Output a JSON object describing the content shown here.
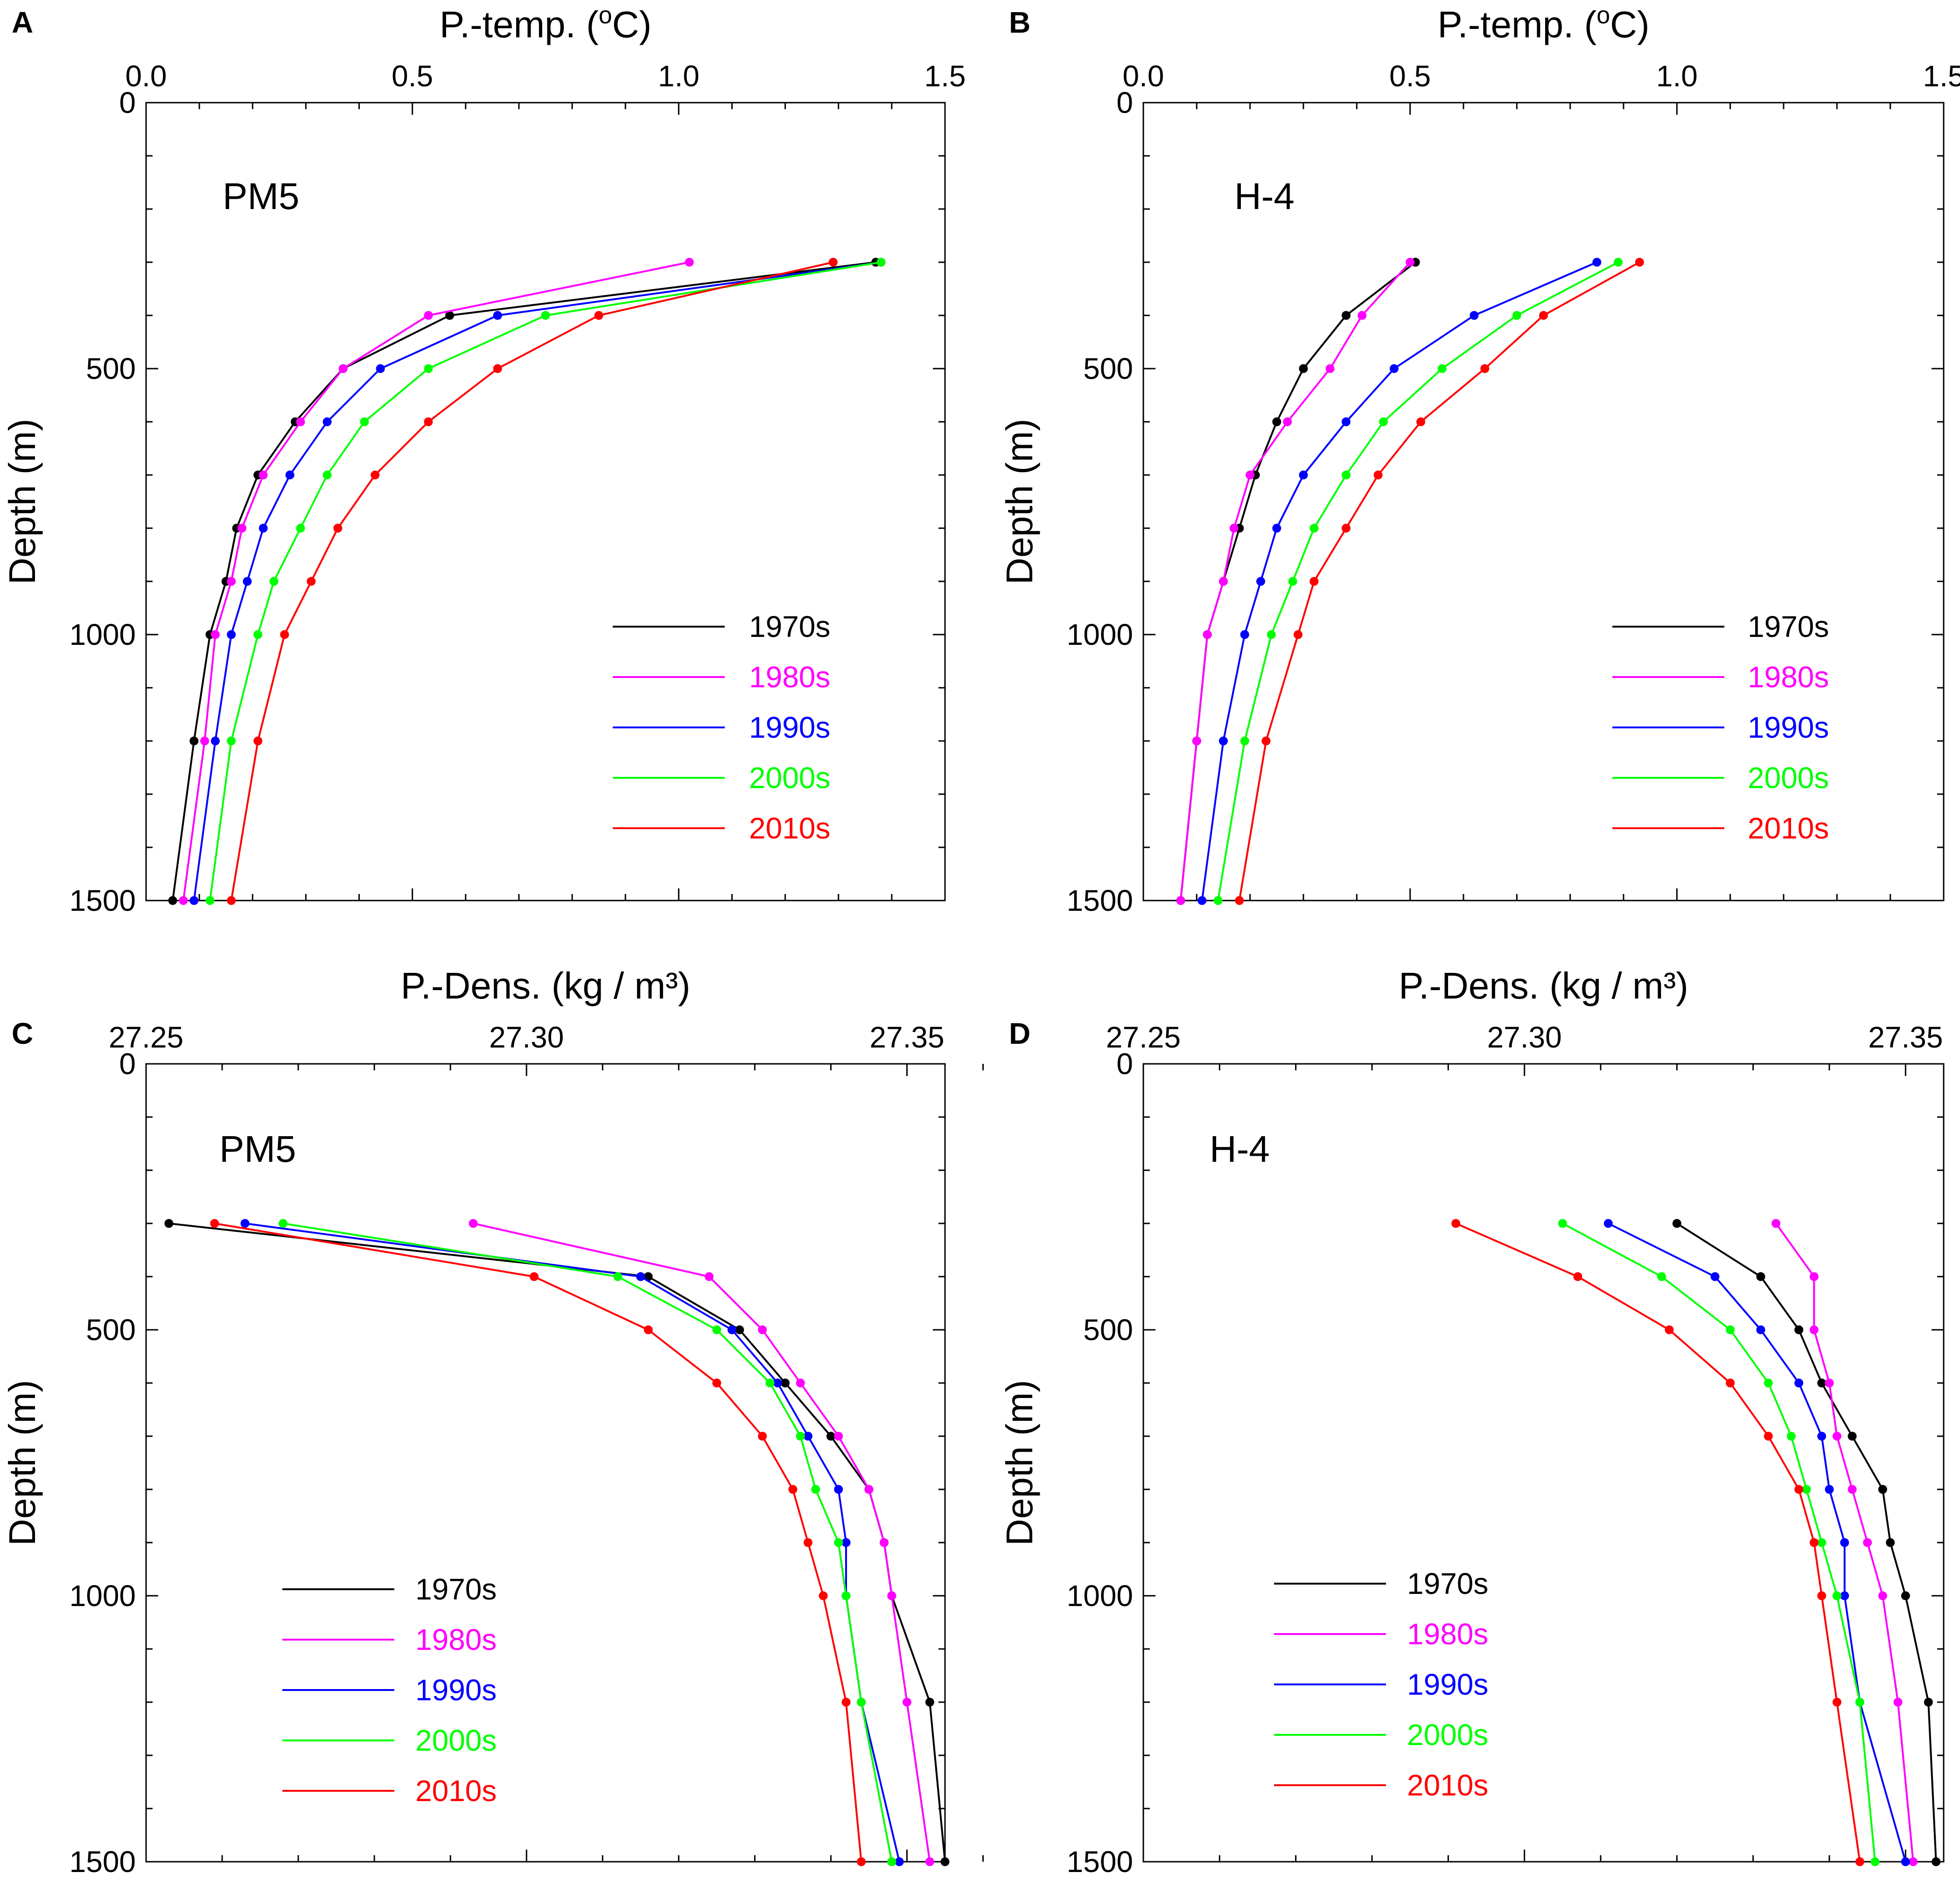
{
  "chart_data": [
    {
      "panel": "A",
      "type": "line",
      "station": "PM5",
      "xlabel": "P.-temp. (oC)",
      "xlabel_main": "P.-temp. (",
      "xlabel_sup": "o",
      "xlabel_end": "C)",
      "ylabel": "Depth (m)",
      "xlim": [
        0.0,
        1.5
      ],
      "ylim": [
        0,
        1500
      ],
      "xticks": [
        0.0,
        0.5,
        1.0,
        1.5
      ],
      "xtick_labels": [
        "0.0",
        "0.5",
        "1.0",
        "1.5"
      ],
      "yticks": [
        0,
        500,
        1000,
        1500
      ],
      "ytick_labels": [
        "0",
        "500",
        "1000",
        "1500"
      ],
      "legend_position": "lower-right",
      "depths": [
        300,
        400,
        500,
        600,
        700,
        800,
        900,
        1000,
        1200,
        1500
      ],
      "series": [
        {
          "name": "1970s",
          "color": "#000000",
          "values": [
            1.37,
            0.57,
            0.37,
            0.28,
            0.21,
            0.17,
            0.15,
            0.12,
            0.09,
            0.05
          ]
        },
        {
          "name": "1980s",
          "color": "#ff00ff",
          "values": [
            1.02,
            0.53,
            0.37,
            0.29,
            0.22,
            0.18,
            0.16,
            0.13,
            0.11,
            0.07
          ]
        },
        {
          "name": "1990s",
          "color": "#0000ff",
          "values": [
            1.38,
            0.66,
            0.44,
            0.34,
            0.27,
            0.22,
            0.19,
            0.16,
            0.13,
            0.09
          ]
        },
        {
          "name": "2000s",
          "color": "#00ff00",
          "values": [
            1.38,
            0.75,
            0.53,
            0.41,
            0.34,
            0.29,
            0.24,
            0.21,
            0.16,
            0.12
          ]
        },
        {
          "name": "2010s",
          "color": "#ff0000",
          "values": [
            1.29,
            0.85,
            0.66,
            0.53,
            0.43,
            0.36,
            0.31,
            0.26,
            0.21,
            0.16
          ]
        }
      ]
    },
    {
      "panel": "B",
      "type": "line",
      "station": "H-4",
      "xlabel": "P.-temp. (oC)",
      "xlabel_main": "P.-temp. (",
      "xlabel_sup": "o",
      "xlabel_end": "C)",
      "ylabel": "Depth (m)",
      "xlim": [
        0.0,
        1.5
      ],
      "ylim": [
        0,
        1500
      ],
      "xticks": [
        0.0,
        0.5,
        1.0,
        1.5
      ],
      "xtick_labels": [
        "0.0",
        "0.5",
        "1.0",
        "1.5"
      ],
      "yticks": [
        0,
        500,
        1000,
        1500
      ],
      "ytick_labels": [
        "0",
        "500",
        "1000",
        "1500"
      ],
      "legend_position": "lower-right",
      "depths": [
        300,
        400,
        500,
        600,
        700,
        800,
        900,
        1000,
        1200,
        1500
      ],
      "series": [
        {
          "name": "1970s",
          "color": "#000000",
          "values": [
            0.51,
            0.38,
            0.3,
            0.25,
            0.21,
            0.18,
            0.15,
            0.12,
            0.1,
            0.07
          ]
        },
        {
          "name": "1980s",
          "color": "#ff00ff",
          "values": [
            0.5,
            0.41,
            0.35,
            0.27,
            0.2,
            0.17,
            0.15,
            0.12,
            0.1,
            0.07
          ]
        },
        {
          "name": "1990s",
          "color": "#0000ff",
          "values": [
            0.85,
            0.62,
            0.47,
            0.38,
            0.3,
            0.25,
            0.22,
            0.19,
            0.15,
            0.11
          ]
        },
        {
          "name": "2000s",
          "color": "#00ff00",
          "values": [
            0.89,
            0.7,
            0.56,
            0.45,
            0.38,
            0.32,
            0.28,
            0.24,
            0.19,
            0.14
          ]
        },
        {
          "name": "2010s",
          "color": "#ff0000",
          "values": [
            0.93,
            0.75,
            0.64,
            0.52,
            0.44,
            0.38,
            0.32,
            0.29,
            0.23,
            0.18
          ]
        }
      ]
    },
    {
      "panel": "C",
      "type": "line",
      "station": "PM5",
      "xlabel": "P.-Dens. (kg / m³)",
      "xlabel_main": "P.-Dens. (kg / m³)",
      "xlabel_sup": "",
      "xlabel_end": "",
      "ylabel": "Depth (m)",
      "xlim": [
        27.25,
        27.355
      ],
      "ylim": [
        0,
        1500
      ],
      "xticks": [
        27.25,
        27.3,
        27.35
      ],
      "xtick_labels": [
        "27.25",
        "27.30",
        "27.35"
      ],
      "yticks": [
        0,
        500,
        1000,
        1500
      ],
      "ytick_labels": [
        "0",
        "500",
        "1000",
        "1500"
      ],
      "legend_position": "lower-left",
      "depths": [
        300,
        400,
        500,
        600,
        700,
        800,
        900,
        1000,
        1200,
        1500
      ],
      "series": [
        {
          "name": "1970s",
          "color": "#000000",
          "values": [
            27.253,
            27.316,
            27.328,
            27.334,
            27.34,
            27.345,
            27.347,
            27.348,
            27.353,
            27.355
          ]
        },
        {
          "name": "1980s",
          "color": "#ff00ff",
          "values": [
            27.293,
            27.324,
            27.331,
            27.336,
            27.341,
            27.345,
            27.347,
            27.348,
            27.35,
            27.353
          ]
        },
        {
          "name": "1990s",
          "color": "#0000ff",
          "values": [
            27.263,
            27.315,
            27.327,
            27.333,
            27.337,
            27.341,
            27.342,
            27.342,
            27.344,
            27.349
          ]
        },
        {
          "name": "2000s",
          "color": "#00ff00",
          "values": [
            27.268,
            27.312,
            27.325,
            27.332,
            27.336,
            27.338,
            27.341,
            27.342,
            27.344,
            27.348
          ]
        },
        {
          "name": "2010s",
          "color": "#ff0000",
          "values": [
            27.259,
            27.301,
            27.316,
            27.325,
            27.331,
            27.335,
            27.337,
            27.339,
            27.342,
            27.344
          ]
        }
      ]
    },
    {
      "panel": "D",
      "type": "line",
      "station": "H-4",
      "xlabel": "P.-Dens. (kg / m³)",
      "xlabel_main": "P.-Dens. (kg / m³)",
      "xlabel_sup": "",
      "xlabel_end": "",
      "ylabel": "Depth (m)",
      "xlim": [
        27.25,
        27.355
      ],
      "ylim": [
        0,
        1500
      ],
      "xticks": [
        27.25,
        27.3,
        27.35
      ],
      "xtick_labels": [
        "27.25",
        "27.30",
        "27.35"
      ],
      "yticks": [
        0,
        500,
        1000,
        1500
      ],
      "ytick_labels": [
        "0",
        "500",
        "1000",
        "1500"
      ],
      "legend_position": "lower-left",
      "depths": [
        300,
        400,
        500,
        600,
        700,
        800,
        900,
        1000,
        1200,
        1500
      ],
      "series": [
        {
          "name": "1970s",
          "color": "#000000",
          "values": [
            27.32,
            27.331,
            27.336,
            27.339,
            27.343,
            27.347,
            27.348,
            27.35,
            27.353,
            27.354
          ]
        },
        {
          "name": "1980s",
          "color": "#ff00ff",
          "values": [
            27.333,
            27.338,
            27.338,
            27.34,
            27.341,
            27.343,
            27.345,
            27.347,
            27.349,
            27.351
          ]
        },
        {
          "name": "1990s",
          "color": "#0000ff",
          "values": [
            27.311,
            27.325,
            27.331,
            27.336,
            27.339,
            27.34,
            27.342,
            27.342,
            27.344,
            27.35
          ]
        },
        {
          "name": "2000s",
          "color": "#00ff00",
          "values": [
            27.305,
            27.318,
            27.327,
            27.332,
            27.335,
            27.337,
            27.339,
            27.341,
            27.344,
            27.346
          ]
        },
        {
          "name": "2010s",
          "color": "#ff0000",
          "values": [
            27.291,
            27.307,
            27.319,
            27.327,
            27.332,
            27.336,
            27.338,
            27.339,
            27.341,
            27.344
          ]
        }
      ]
    }
  ]
}
